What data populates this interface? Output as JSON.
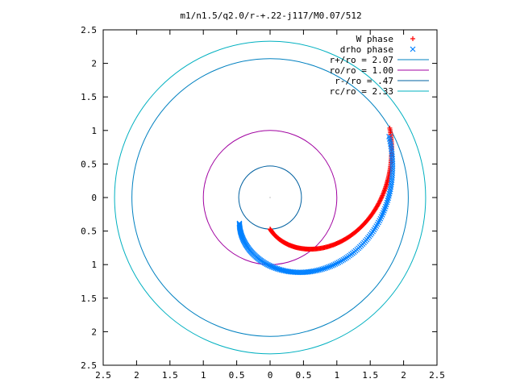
{
  "chart_data": {
    "type": "scatter",
    "title": "m1/n1.5/q2.0/r-+.22-j117/M0.07/512",
    "xlabel": "",
    "ylabel": "",
    "xlim": [
      -2.5,
      2.5
    ],
    "ylim": [
      -2.5,
      2.5
    ],
    "x_tick_labels": [
      "2.5",
      "2",
      "1.5",
      "1",
      "0.5",
      "0",
      "0.5",
      "1",
      "1.5",
      "2",
      "2.5"
    ],
    "y_tick_labels": [
      "2.5",
      "2",
      "1.5",
      "1",
      "0.5",
      "0",
      "0.5",
      "1",
      "1.5",
      "2",
      "2.5"
    ],
    "grid": false,
    "legend_position": "top-right",
    "series": [
      {
        "name": "W phase",
        "marker": "+",
        "color": "#ff0000",
        "spiral": {
          "r_start": 0.47,
          "r_end": 2.07,
          "theta_start_deg": -90,
          "theta_end_deg": 30,
          "count": 200
        }
      },
      {
        "name": "drho phase",
        "marker": "x",
        "color": "#0080ff",
        "spiral": {
          "r_start": 0.6,
          "r_end": 2.0,
          "theta_start_deg": -140,
          "theta_end_deg": 27,
          "count": 160
        }
      }
    ],
    "circles": [
      {
        "name": "r+/ro = 2.07",
        "r": 2.07,
        "color": "#0080c0"
      },
      {
        "name": "ro/ro = 1.00",
        "r": 1.0,
        "color": "#a000a0"
      },
      {
        "name": "r-/ro = .47",
        "r": 0.47,
        "color": "#0060a0"
      },
      {
        "name": "rc/ro = 2.33",
        "r": 2.33,
        "color": "#00b0c0"
      }
    ]
  }
}
